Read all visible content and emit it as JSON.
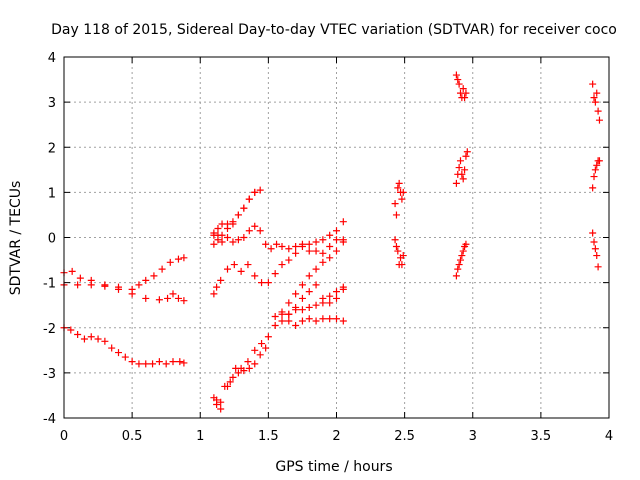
{
  "chart_data": {
    "type": "scatter",
    "title": "Day 118 of 2015, Sidereal Day-to-day VTEC variation (SDTVAR) for receiver coco",
    "xlabel": "GPS time / hours",
    "ylabel": "SDTVAR / TECUs",
    "xlim": [
      0,
      4
    ],
    "ylim": [
      -4,
      4
    ],
    "xticks": [
      "0",
      "0.5",
      "1",
      "1.5",
      "2",
      "2.5",
      "3",
      "3.5",
      "4"
    ],
    "yticks": [
      "-4",
      "-3",
      "-2",
      "-1",
      "0",
      "1",
      "2",
      "3",
      "4"
    ],
    "grid": true,
    "marker": "+",
    "color": "#ff0000",
    "segments": [
      {
        "x": [
          0.0,
          0.06,
          0.12,
          0.2,
          0.3,
          0.4,
          0.5,
          0.55,
          0.6,
          0.66,
          0.72,
          0.78,
          0.84,
          0.88
        ],
        "y": [
          -0.78,
          -0.75,
          -0.9,
          -0.95,
          -1.05,
          -1.1,
          -1.15,
          -1.05,
          -0.95,
          -0.85,
          -0.7,
          -0.55,
          -0.48,
          -0.45
        ]
      },
      {
        "x": [
          0.0,
          0.1,
          0.2,
          0.3,
          0.4,
          0.5,
          0.6,
          0.7,
          0.76,
          0.8,
          0.84,
          0.88
        ],
        "y": [
          -1.05,
          -1.05,
          -1.05,
          -1.08,
          -1.15,
          -1.25,
          -1.35,
          -1.38,
          -1.35,
          -1.25,
          -1.35,
          -1.4
        ]
      },
      {
        "x": [
          0.0,
          0.05,
          0.1,
          0.15,
          0.2,
          0.25,
          0.3,
          0.35,
          0.4,
          0.45,
          0.5,
          0.55,
          0.6,
          0.65,
          0.7,
          0.75,
          0.8,
          0.85,
          0.88
        ],
        "y": [
          -2.0,
          -2.05,
          -2.15,
          -2.25,
          -2.2,
          -2.25,
          -2.3,
          -2.45,
          -2.55,
          -2.65,
          -2.75,
          -2.8,
          -2.8,
          -2.8,
          -2.75,
          -2.8,
          -2.75,
          -2.75,
          -2.78
        ]
      },
      {
        "x": [
          1.1,
          1.12,
          1.15,
          1.18,
          1.22,
          1.26,
          1.3,
          1.35,
          1.4,
          1.45,
          1.5,
          1.55,
          1.6,
          1.65,
          1.7,
          1.75,
          1.8,
          1.85,
          1.9,
          1.95,
          2.0,
          2.05
        ],
        "y": [
          -3.55,
          -3.6,
          -3.65,
          -3.3,
          -3.2,
          -2.9,
          -2.9,
          -2.75,
          -2.5,
          -2.35,
          -2.2,
          -1.95,
          -1.7,
          -1.45,
          -1.25,
          -1.05,
          -0.85,
          -0.7,
          -0.55,
          -0.45,
          -0.3,
          -0.1
        ]
      },
      {
        "x": [
          1.12,
          1.15,
          1.2,
          1.24,
          1.28,
          1.32,
          1.36,
          1.4,
          1.44,
          1.48
        ],
        "y": [
          -3.7,
          -3.8,
          -3.3,
          -3.1,
          -3.0,
          -2.95,
          -2.9,
          -2.8,
          -2.6,
          -2.45
        ]
      },
      {
        "x": [
          1.1,
          1.12,
          1.15,
          1.2,
          1.25,
          1.3,
          1.35,
          1.4,
          1.45,
          1.5,
          1.55,
          1.6,
          1.65,
          1.7,
          1.75,
          1.8,
          1.85,
          1.9,
          1.95,
          2.0,
          2.05
        ],
        "y": [
          -1.25,
          -1.1,
          -0.95,
          -0.7,
          -0.6,
          -0.75,
          -0.6,
          -0.85,
          -1.0,
          -1.0,
          -0.8,
          -0.6,
          -0.5,
          -0.35,
          -0.2,
          -0.15,
          -0.1,
          -0.05,
          0.05,
          0.15,
          0.35
        ]
      },
      {
        "x": [
          1.1,
          1.13,
          1.16,
          1.2,
          1.24,
          1.28,
          1.32,
          1.36,
          1.4,
          1.44,
          1.48,
          1.52,
          1.56,
          1.6,
          1.65,
          1.7,
          1.75,
          1.8,
          1.85,
          1.9,
          1.95,
          2.0,
          2.05
        ],
        "y": [
          0.1,
          0.05,
          -0.1,
          0.0,
          -0.1,
          -0.05,
          0.0,
          0.15,
          0.25,
          0.15,
          -0.15,
          -0.25,
          -0.15,
          -0.2,
          -0.25,
          -0.2,
          -0.15,
          -0.3,
          -0.3,
          -0.35,
          -0.2,
          -0.05,
          -0.05
        ]
      },
      {
        "x": [
          1.1,
          1.13,
          1.16,
          1.2,
          1.24,
          1.28,
          1.32,
          1.36,
          1.4,
          1.44
        ],
        "y": [
          0.05,
          0.2,
          0.3,
          0.3,
          0.35,
          0.5,
          0.65,
          0.85,
          1.0,
          1.05
        ]
      },
      {
        "x": [
          1.1,
          1.13,
          1.16,
          1.2,
          1.24,
          1.28,
          1.32,
          1.36,
          1.4
        ],
        "y": [
          -0.15,
          -0.05,
          0.05,
          0.2,
          0.3,
          0.5,
          0.65,
          0.85,
          1.0
        ]
      },
      {
        "x": [
          1.55,
          1.6,
          1.65,
          1.7,
          1.75,
          1.8,
          1.85,
          1.9,
          1.95,
          2.0,
          2.05
        ],
        "y": [
          -1.75,
          -1.65,
          -1.7,
          -1.6,
          -1.6,
          -1.55,
          -1.5,
          -1.45,
          -1.45,
          -1.35,
          -1.15
        ]
      },
      {
        "x": [
          1.6,
          1.65,
          1.7,
          1.75,
          1.8,
          1.85,
          1.9,
          1.95,
          2.0,
          2.05
        ],
        "y": [
          -1.85,
          -1.85,
          -1.95,
          -1.85,
          -1.8,
          -1.85,
          -1.8,
          -1.8,
          -1.8,
          -1.85
        ]
      },
      {
        "x": [
          1.65,
          1.7,
          1.75,
          1.8,
          1.85,
          1.9,
          1.95,
          2.0,
          2.05
        ],
        "y": [
          -1.7,
          -1.55,
          -1.35,
          -1.2,
          -1.05,
          -1.35,
          -1.3,
          -1.2,
          -1.1
        ]
      },
      {
        "x": [
          2.43,
          2.44,
          2.45,
          2.46,
          2.47,
          2.48,
          2.49
        ],
        "y": [
          0.75,
          0.5,
          1.1,
          1.2,
          1.0,
          0.85,
          1.0
        ]
      },
      {
        "x": [
          2.43,
          2.44,
          2.45,
          2.46,
          2.47,
          2.48,
          2.49
        ],
        "y": [
          -0.05,
          -0.2,
          -0.3,
          -0.6,
          -0.45,
          -0.6,
          -0.4
        ]
      },
      {
        "x": [
          2.88,
          2.89,
          2.9,
          2.91,
          2.92,
          2.93,
          2.94,
          2.95
        ],
        "y": [
          3.6,
          3.5,
          3.4,
          3.2,
          3.1,
          3.3,
          3.1,
          3.2
        ]
      },
      {
        "x": [
          2.88,
          2.89,
          2.9,
          2.91,
          2.92,
          2.93,
          2.94,
          2.95,
          2.96
        ],
        "y": [
          1.2,
          1.4,
          1.55,
          1.7,
          1.4,
          1.3,
          1.5,
          1.8,
          1.9
        ]
      },
      {
        "x": [
          2.88,
          2.89,
          2.9,
          2.91,
          2.92,
          2.93,
          2.94,
          2.95
        ],
        "y": [
          -0.85,
          -0.7,
          -0.6,
          -0.5,
          -0.4,
          -0.3,
          -0.2,
          -0.15
        ]
      },
      {
        "x": [
          3.88,
          3.89,
          3.9,
          3.91,
          3.92,
          3.93
        ],
        "y": [
          3.4,
          3.1,
          3.0,
          3.2,
          2.8,
          2.6
        ]
      },
      {
        "x": [
          3.88,
          3.89,
          3.9,
          3.91,
          3.92,
          3.93
        ],
        "y": [
          1.1,
          1.35,
          1.5,
          1.6,
          1.7,
          1.7
        ]
      },
      {
        "x": [
          3.88,
          3.89,
          3.9,
          3.91,
          3.92
        ],
        "y": [
          0.1,
          -0.1,
          -0.25,
          -0.4,
          -0.65
        ]
      }
    ]
  }
}
